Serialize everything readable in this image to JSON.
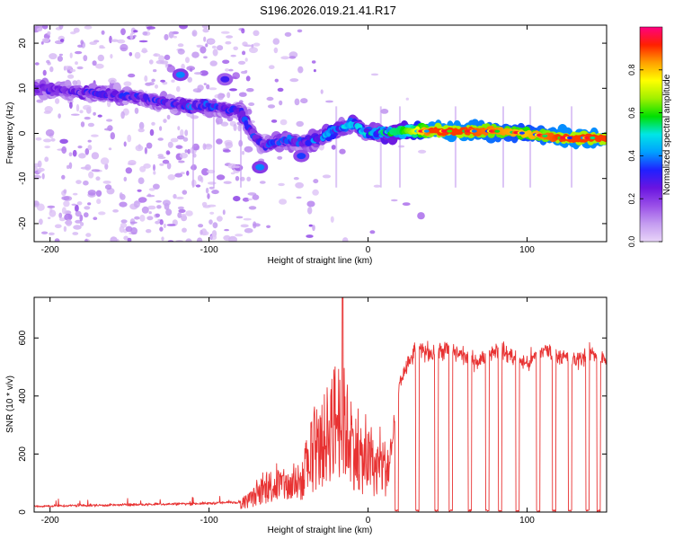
{
  "title": "S196.2026.019.21.41.R17",
  "chart_data": [
    {
      "type": "heatmap",
      "name": "spectrogram",
      "xlabel": "Height of straight line (km)",
      "ylabel": "Frequency (Hz)",
      "xlim": [
        -210,
        150
      ],
      "ylim": [
        -24,
        24
      ],
      "xticks": [
        -200,
        -100,
        0,
        100
      ],
      "yticks": [
        -20,
        -10,
        0,
        10,
        20
      ],
      "colorbar": {
        "label": "Normalized spectral amplitude",
        "range": [
          0,
          1
        ],
        "ticks": [
          "0.0",
          "0.2",
          "0.4",
          "0.6",
          "0.8"
        ],
        "tick_values": [
          0.0,
          0.2,
          0.4,
          0.6,
          0.8
        ],
        "colors": [
          "#e8d4f8",
          "#c49cf0",
          "#9a50e8",
          "#6a14e0",
          "#2020ff",
          "#00a0ff",
          "#00e6e6",
          "#00e000",
          "#a0f000",
          "#ffff00",
          "#ffa000",
          "#ff2000",
          "#ff0080"
        ]
      },
      "ridge": {
        "x": [
          -205,
          -190,
          -175,
          -160,
          -145,
          -130,
          -115,
          -100,
          -90,
          -80,
          -75,
          -70,
          -65,
          -60,
          -50,
          -40,
          -30,
          -20,
          -10,
          0,
          20,
          40,
          60,
          80,
          100,
          120,
          150
        ],
        "freq": [
          10,
          9.5,
          9,
          8.5,
          8,
          7,
          6,
          6,
          5.5,
          5,
          1,
          -1,
          -3,
          -2,
          -1.5,
          -2,
          -1,
          1,
          2,
          0,
          0.5,
          0.5,
          0.5,
          0.5,
          0,
          -1,
          -1
        ],
        "amplitude": [
          0.25,
          0.25,
          0.3,
          0.3,
          0.3,
          0.3,
          0.35,
          0.35,
          0.3,
          0.3,
          0.35,
          0.3,
          0.3,
          0.35,
          0.35,
          0.35,
          0.4,
          0.45,
          0.45,
          0.5,
          0.55,
          0.9,
          0.9,
          0.85,
          0.8,
          0.9,
          0.9
        ]
      },
      "blobs": [
        {
          "x": -118,
          "freq": 13,
          "amplitude": 0.4
        },
        {
          "x": -90,
          "freq": 12,
          "amplitude": 0.3
        },
        {
          "x": -68,
          "freq": -7.5,
          "amplitude": 0.4
        },
        {
          "x": -42,
          "freq": -5,
          "amplitude": 0.35
        }
      ]
    },
    {
      "type": "line",
      "name": "snr",
      "xlabel": "Height of straight line (km)",
      "ylabel": "SNR (10 * v/v)",
      "xlim": [
        -210,
        150
      ],
      "ylim": [
        0,
        740
      ],
      "xticks": [
        -200,
        -100,
        0,
        100
      ],
      "yticks": [
        0,
        200,
        400,
        600
      ],
      "color": "#e83232",
      "envelope": {
        "x": [
          -210,
          -150,
          -100,
          -80,
          -70,
          -60,
          -50,
          -40,
          -35,
          -30,
          -25,
          -20,
          -15,
          -10,
          -5,
          0,
          5,
          10,
          15,
          20,
          30,
          40,
          50,
          60,
          70,
          80,
          90,
          100,
          110,
          120,
          130,
          140,
          150
        ],
        "y": [
          20,
          25,
          30,
          35,
          80,
          130,
          120,
          150,
          260,
          300,
          380,
          450,
          420,
          320,
          240,
          240,
          200,
          210,
          230,
          450,
          560,
          550,
          560,
          540,
          520,
          560,
          540,
          510,
          560,
          540,
          520,
          550,
          520
        ]
      },
      "peak": {
        "x": -16,
        "y": 740
      },
      "dropouts_x": [
        18,
        31,
        43,
        52,
        64,
        75,
        83,
        94,
        107,
        117,
        127,
        138,
        145
      ]
    }
  ]
}
